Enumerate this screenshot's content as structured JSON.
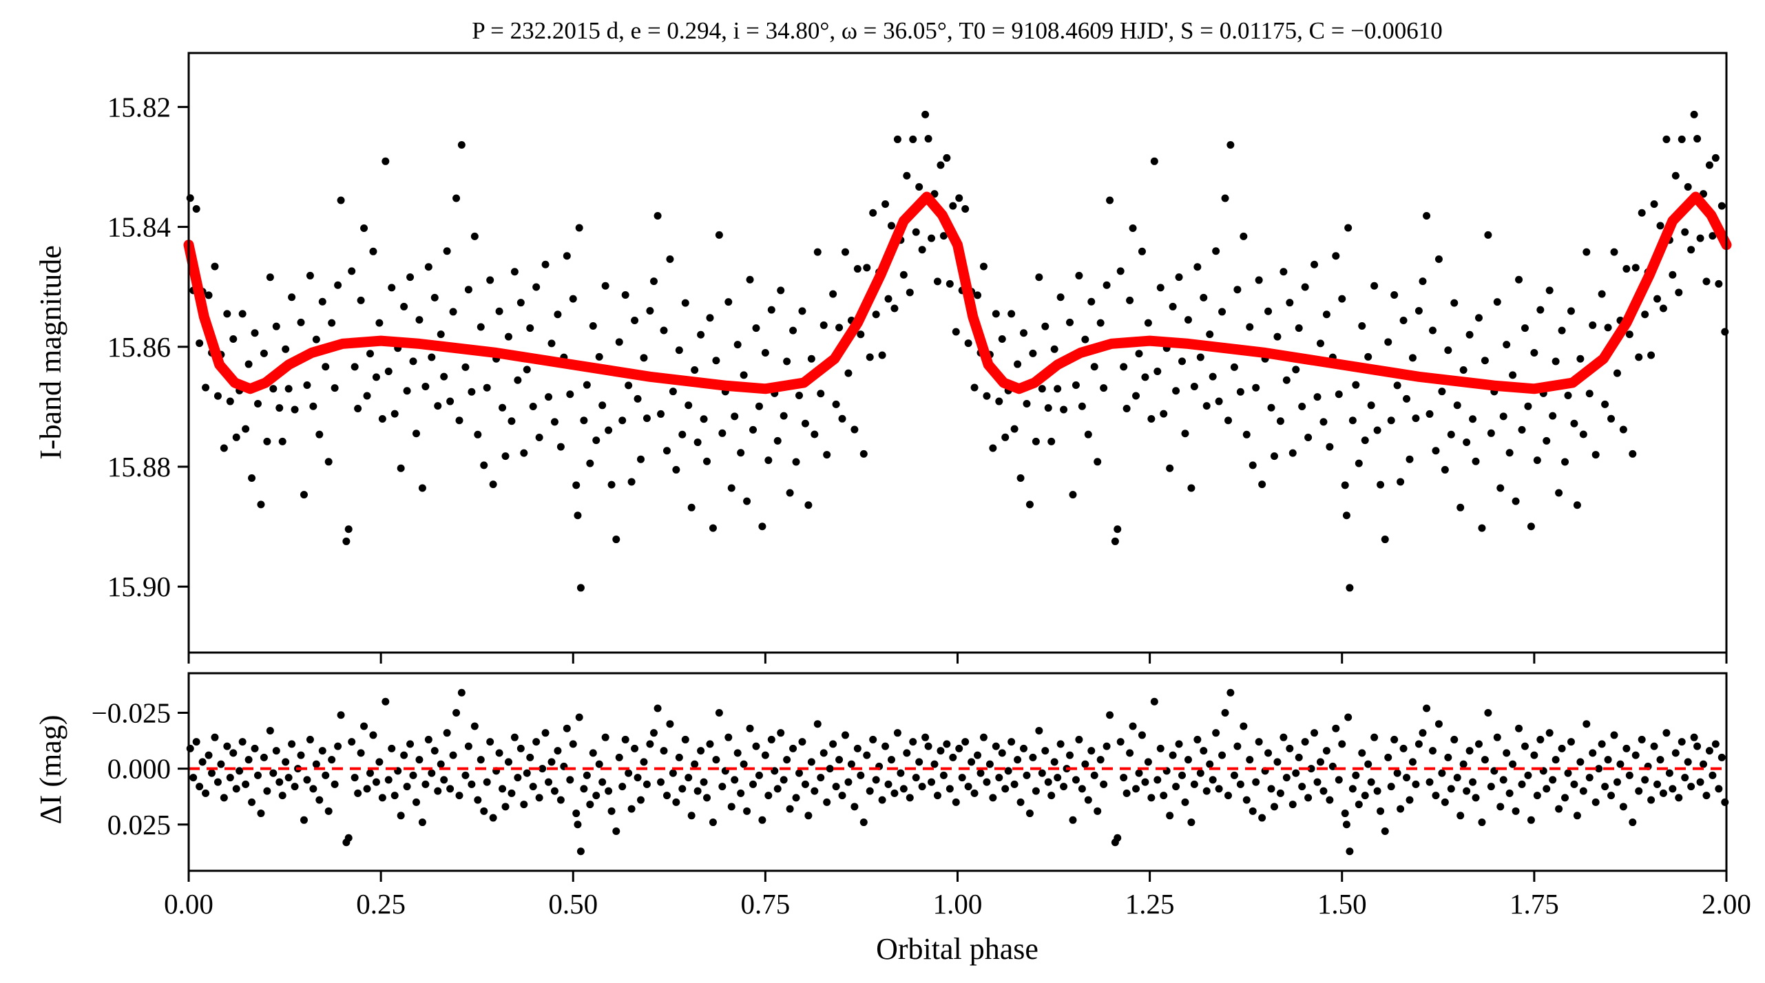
{
  "chart_data": [
    {
      "type": "scatter",
      "panel": "light-curve",
      "title": "P = 232.2015 d, e = 0.294, i = 34.80°, ω = 36.05°, T0 = 9108.4609 HJD', S = 0.01175, C = −0.00610",
      "xlabel": "",
      "ylabel": "I-band magnitude",
      "xlim": [
        0,
        2
      ],
      "ylim": [
        15.911,
        15.811
      ],
      "y_inverted": true,
      "yticks": [
        "15.82",
        "15.84",
        "15.86",
        "15.88",
        "15.90"
      ],
      "ytick_values": [
        15.82,
        15.84,
        15.86,
        15.88,
        15.9
      ],
      "grid": false,
      "colors": {
        "points": "#000000",
        "model": "#ff0000"
      },
      "model": {
        "name": "orbital model",
        "phase": [
          0.0,
          0.02,
          0.04,
          0.06,
          0.08,
          0.1,
          0.13,
          0.16,
          0.2,
          0.25,
          0.3,
          0.4,
          0.5,
          0.6,
          0.7,
          0.75,
          0.8,
          0.84,
          0.87,
          0.9,
          0.93,
          0.96,
          0.98,
          1.0
        ],
        "mag": [
          15.843,
          15.855,
          15.863,
          15.866,
          15.867,
          15.866,
          15.863,
          15.861,
          15.8595,
          15.859,
          15.8595,
          15.861,
          15.863,
          15.865,
          15.8665,
          15.867,
          15.866,
          15.862,
          15.856,
          15.848,
          15.839,
          15.835,
          15.838,
          15.843
        ]
      },
      "note": "observations = model(phase) + residual; each point shown at phase and phase+1"
    },
    {
      "type": "scatter",
      "panel": "residuals",
      "xlabel": "Orbital phase",
      "ylabel": "ΔI (mag)",
      "xlim": [
        0,
        2
      ],
      "ylim": [
        0.0457,
        -0.0427
      ],
      "y_inverted": true,
      "xticks": [
        "0.00",
        "0.25",
        "0.50",
        "0.75",
        "1.00",
        "1.25",
        "1.50",
        "1.75",
        "2.00"
      ],
      "xtick_values": [
        0,
        0.25,
        0.5,
        0.75,
        1.0,
        1.25,
        1.5,
        1.75,
        2.0
      ],
      "yticks": [
        "−0.025",
        "0.000",
        "0.025"
      ],
      "ytick_values": [
        -0.025,
        0,
        0.025
      ],
      "zero_line": {
        "value": 0,
        "color": "#ff0000",
        "style": "dashed"
      },
      "residuals": [
        [
          0.002,
          -0.009
        ],
        [
          0.006,
          0.004
        ],
        [
          0.01,
          -0.012
        ],
        [
          0.014,
          0.008
        ],
        [
          0.018,
          -0.003
        ],
        [
          0.022,
          0.011
        ],
        [
          0.026,
          -0.006
        ],
        [
          0.03,
          0.002
        ],
        [
          0.034,
          -0.014
        ],
        [
          0.038,
          0.006
        ],
        [
          0.042,
          -0.002
        ],
        [
          0.046,
          0.013
        ],
        [
          0.05,
          -0.01
        ],
        [
          0.054,
          0.004
        ],
        [
          0.058,
          -0.007
        ],
        [
          0.062,
          0.009
        ],
        [
          0.066,
          0.001
        ],
        [
          0.07,
          -0.012
        ],
        [
          0.074,
          0.007
        ],
        [
          0.078,
          -0.004
        ],
        [
          0.082,
          0.015
        ],
        [
          0.086,
          -0.009
        ],
        [
          0.09,
          0.003
        ],
        [
          0.094,
          0.02
        ],
        [
          0.098,
          -0.005
        ],
        [
          0.102,
          0.01
        ],
        [
          0.106,
          -0.017
        ],
        [
          0.11,
          0.002
        ],
        [
          0.114,
          -0.008
        ],
        [
          0.118,
          0.006
        ],
        [
          0.122,
          0.012
        ],
        [
          0.126,
          -0.003
        ],
        [
          0.13,
          0.004
        ],
        [
          0.134,
          -0.011
        ],
        [
          0.138,
          0.008
        ],
        [
          0.142,
          0.0
        ],
        [
          0.146,
          -0.006
        ],
        [
          0.15,
          0.023
        ],
        [
          0.154,
          0.005
        ],
        [
          0.158,
          -0.013
        ],
        [
          0.162,
          0.009
        ],
        [
          0.166,
          -0.002
        ],
        [
          0.17,
          0.014
        ],
        [
          0.174,
          -0.008
        ],
        [
          0.178,
          0.003
        ],
        [
          0.182,
          0.019
        ],
        [
          0.186,
          -0.004
        ],
        [
          0.19,
          0.007
        ],
        [
          0.194,
          -0.01
        ],
        [
          0.198,
          -0.024
        ],
        [
          0.205,
          0.033
        ],
        [
          0.208,
          0.031
        ],
        [
          0.212,
          -0.012
        ],
        [
          0.216,
          0.004
        ],
        [
          0.22,
          0.011
        ],
        [
          0.224,
          -0.007
        ],
        [
          0.228,
          -0.019
        ],
        [
          0.232,
          0.009
        ],
        [
          0.236,
          0.002
        ],
        [
          0.24,
          -0.015
        ],
        [
          0.244,
          0.006
        ],
        [
          0.248,
          -0.003
        ],
        [
          0.252,
          0.013
        ],
        [
          0.256,
          -0.03
        ],
        [
          0.26,
          0.005
        ],
        [
          0.264,
          -0.009
        ],
        [
          0.268,
          0.012
        ],
        [
          0.272,
          0.001
        ],
        [
          0.276,
          0.021
        ],
        [
          0.28,
          -0.006
        ],
        [
          0.284,
          0.008
        ],
        [
          0.288,
          -0.011
        ],
        [
          0.292,
          0.003
        ],
        [
          0.296,
          0.015
        ],
        [
          0.3,
          -0.004
        ],
        [
          0.304,
          0.024
        ],
        [
          0.308,
          0.007
        ],
        [
          0.312,
          -0.013
        ],
        [
          0.316,
          0.002
        ],
        [
          0.32,
          -0.008
        ],
        [
          0.324,
          0.01
        ],
        [
          0.328,
          -0.002
        ],
        [
          0.332,
          0.005
        ],
        [
          0.336,
          -0.016
        ],
        [
          0.34,
          0.009
        ],
        [
          0.344,
          -0.006
        ],
        [
          0.348,
          -0.025
        ],
        [
          0.352,
          0.012
        ],
        [
          0.355,
          -0.034
        ],
        [
          0.36,
          0.003
        ],
        [
          0.364,
          -0.01
        ],
        [
          0.368,
          0.007
        ],
        [
          0.372,
          -0.019
        ],
        [
          0.376,
          0.014
        ],
        [
          0.38,
          -0.004
        ],
        [
          0.384,
          0.019
        ],
        [
          0.388,
          0.006
        ],
        [
          0.392,
          -0.012
        ],
        [
          0.396,
          0.022
        ],
        [
          0.4,
          0.001
        ],
        [
          0.404,
          -0.007
        ],
        [
          0.408,
          0.009
        ],
        [
          0.412,
          0.017
        ],
        [
          0.416,
          -0.003
        ],
        [
          0.42,
          0.011
        ],
        [
          0.424,
          -0.014
        ],
        [
          0.428,
          0.004
        ],
        [
          0.432,
          -0.009
        ],
        [
          0.436,
          0.016
        ],
        [
          0.44,
          0.002
        ],
        [
          0.444,
          -0.005
        ],
        [
          0.448,
          0.008
        ],
        [
          0.452,
          -0.012
        ],
        [
          0.456,
          0.013
        ],
        [
          0.46,
          0.0
        ],
        [
          0.464,
          -0.016
        ],
        [
          0.468,
          0.006
        ],
        [
          0.472,
          -0.003
        ],
        [
          0.476,
          0.01
        ],
        [
          0.48,
          -0.008
        ],
        [
          0.484,
          0.014
        ],
        [
          0.488,
          -0.001
        ],
        [
          0.492,
          -0.018
        ],
        [
          0.496,
          0.005
        ],
        [
          0.5,
          -0.011
        ],
        [
          0.504,
          0.02
        ],
        [
          0.506,
          0.025
        ],
        [
          0.508,
          -0.023
        ],
        [
          0.51,
          0.037
        ],
        [
          0.514,
          0.009
        ],
        [
          0.518,
          0.003
        ],
        [
          0.522,
          0.016
        ],
        [
          0.526,
          -0.007
        ],
        [
          0.53,
          0.012
        ],
        [
          0.534,
          -0.002
        ],
        [
          0.538,
          0.006
        ],
        [
          0.542,
          -0.014
        ],
        [
          0.546,
          0.01
        ],
        [
          0.55,
          0.019
        ],
        [
          0.556,
          0.028
        ],
        [
          0.56,
          -0.005
        ],
        [
          0.564,
          0.008
        ],
        [
          0.568,
          -0.013
        ],
        [
          0.572,
          0.002
        ],
        [
          0.576,
          0.018
        ],
        [
          0.58,
          -0.009
        ],
        [
          0.584,
          0.004
        ],
        [
          0.588,
          0.014
        ],
        [
          0.592,
          -0.003
        ],
        [
          0.596,
          0.007
        ],
        [
          0.6,
          -0.011
        ],
        [
          0.605,
          -0.016
        ],
        [
          0.61,
          -0.027
        ],
        [
          0.614,
          0.006
        ],
        [
          0.618,
          -0.008
        ],
        [
          0.622,
          0.012
        ],
        [
          0.626,
          -0.02
        ],
        [
          0.63,
          0.002
        ],
        [
          0.634,
          0.015
        ],
        [
          0.638,
          -0.005
        ],
        [
          0.642,
          0.009
        ],
        [
          0.646,
          -0.013
        ],
        [
          0.65,
          0.004
        ],
        [
          0.654,
          0.021
        ],
        [
          0.658,
          -0.002
        ],
        [
          0.662,
          0.01
        ],
        [
          0.666,
          -0.008
        ],
        [
          0.67,
          0.006
        ],
        [
          0.674,
          0.013
        ],
        [
          0.678,
          -0.011
        ],
        [
          0.682,
          0.024
        ],
        [
          0.686,
          -0.004
        ],
        [
          0.69,
          -0.025
        ],
        [
          0.694,
          0.008
        ],
        [
          0.698,
          0.001
        ],
        [
          0.702,
          -0.014
        ],
        [
          0.706,
          0.017
        ],
        [
          0.71,
          0.005
        ],
        [
          0.714,
          -0.007
        ],
        [
          0.718,
          0.011
        ],
        [
          0.722,
          -0.002
        ],
        [
          0.726,
          0.019
        ],
        [
          0.73,
          -0.018
        ],
        [
          0.734,
          0.007
        ],
        [
          0.738,
          -0.01
        ],
        [
          0.742,
          0.003
        ],
        [
          0.746,
          0.023
        ],
        [
          0.75,
          -0.006
        ],
        [
          0.754,
          0.012
        ],
        [
          0.758,
          -0.013
        ],
        [
          0.762,
          0.001
        ],
        [
          0.766,
          0.009
        ],
        [
          0.77,
          -0.016
        ],
        [
          0.774,
          0.005
        ],
        [
          0.778,
          -0.004
        ],
        [
          0.782,
          0.018
        ],
        [
          0.786,
          -0.009
        ],
        [
          0.79,
          0.013
        ],
        [
          0.794,
          0.002
        ],
        [
          0.798,
          -0.012
        ],
        [
          0.802,
          0.007
        ],
        [
          0.806,
          0.021
        ],
        [
          0.81,
          -0.003
        ],
        [
          0.814,
          0.01
        ],
        [
          0.818,
          -0.02
        ],
        [
          0.822,
          0.004
        ],
        [
          0.826,
          -0.007
        ],
        [
          0.83,
          0.015
        ],
        [
          0.834,
          0.0
        ],
        [
          0.838,
          -0.011
        ],
        [
          0.842,
          0.008
        ],
        [
          0.846,
          -0.004
        ],
        [
          0.85,
          0.012
        ],
        [
          0.854,
          -0.015
        ],
        [
          0.858,
          0.006
        ],
        [
          0.862,
          -0.002
        ],
        [
          0.866,
          0.017
        ],
        [
          0.87,
          -0.009
        ],
        [
          0.874,
          0.003
        ],
        [
          0.878,
          0.024
        ],
        [
          0.882,
          -0.006
        ],
        [
          0.886,
          0.01
        ],
        [
          0.89,
          -0.013
        ],
        [
          0.894,
          0.005
        ],
        [
          0.898,
          -0.001
        ],
        [
          0.902,
          0.014
        ],
        [
          0.906,
          -0.01
        ],
        [
          0.91,
          0.007
        ],
        [
          0.914,
          -0.004
        ],
        [
          0.918,
          0.011
        ],
        [
          0.922,
          -0.016
        ],
        [
          0.926,
          0.002
        ],
        [
          0.93,
          0.009
        ],
        [
          0.934,
          -0.007
        ],
        [
          0.938,
          0.013
        ],
        [
          0.942,
          -0.012
        ],
        [
          0.946,
          0.004
        ],
        [
          0.95,
          -0.003
        ],
        [
          0.954,
          0.008
        ],
        [
          0.958,
          -0.014
        ],
        [
          0.962,
          -0.01
        ],
        [
          0.966,
          0.006
        ],
        [
          0.97,
          -0.002
        ],
        [
          0.974,
          0.012
        ],
        [
          0.978,
          -0.008
        ],
        [
          0.982,
          0.003
        ],
        [
          0.986,
          -0.011
        ],
        [
          0.99,
          0.009
        ],
        [
          0.994,
          -0.005
        ],
        [
          0.998,
          0.015
        ]
      ]
    }
  ]
}
